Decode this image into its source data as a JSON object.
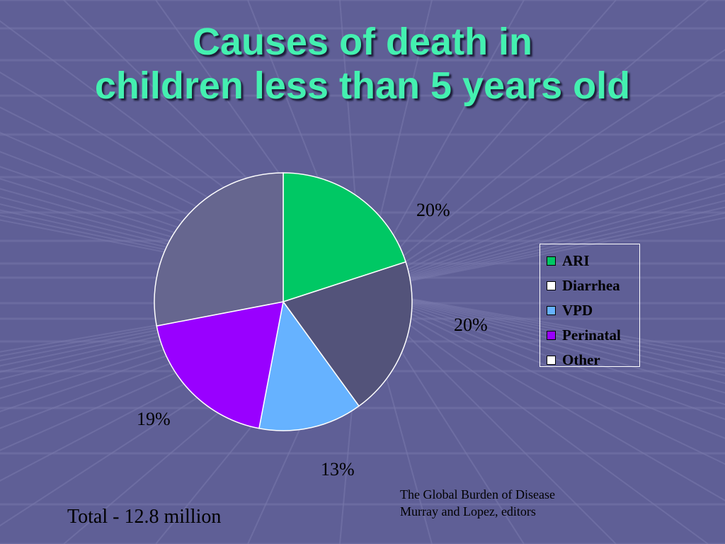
{
  "title_line1": "Causes of death in",
  "title_line2": "children less than 5 years old",
  "chart_data": {
    "type": "pie",
    "title": "Causes of death in children less than 5 years old",
    "unit": "%",
    "slices": [
      {
        "label": "ARI",
        "value": 20,
        "value_label": "20%",
        "color": "#00c864"
      },
      {
        "label": "Diarrhea",
        "value": 20,
        "value_label": "20%",
        "color": "#53537a"
      },
      {
        "label": "VPD",
        "value": 13,
        "value_label": "13%",
        "color": "#66b2ff"
      },
      {
        "label": "Perinatal",
        "value": 19,
        "value_label": "19%",
        "color": "#9900ff"
      },
      {
        "label": "Other",
        "value": 28,
        "value_label": "",
        "color": "#66668f"
      }
    ],
    "legend_position": "right"
  },
  "legend_swatch_colors": [
    "#00c864",
    "#ffffff",
    "#66b2ff",
    "#9900ff",
    "#ffffff"
  ],
  "source_line1": "The Global Burden of Disease",
  "source_line2": "Murray and Lopez, editors",
  "total": "Total - 12.8 million",
  "colors": {
    "background": "#5f5f96",
    "title": "#44f0b0",
    "grid": "#7a7aad"
  }
}
